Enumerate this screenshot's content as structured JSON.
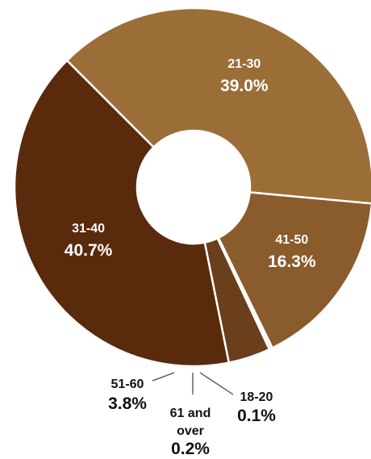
{
  "chart_data": {
    "type": "pie",
    "variant": "donut",
    "categories": [
      "21-30",
      "41-50",
      "18-20",
      "61 and over",
      "51-60",
      "31-40"
    ],
    "values": [
      39.0,
      16.3,
      0.1,
      0.2,
      3.8,
      40.7
    ],
    "value_labels": [
      "39.0%",
      "16.3%",
      "0.1%",
      "0.2%",
      "3.8%",
      "40.7%"
    ],
    "colors": [
      "#9B6E38",
      "#8A5B2C",
      "#6B3E1C",
      "#6B3E1C",
      "#6B3E1C",
      "#5A2A0C"
    ],
    "label_placement": [
      "inside",
      "inside",
      "outside",
      "outside",
      "outside",
      "inside"
    ],
    "title": "",
    "legend": "none",
    "slice_border_color": "#ffffff",
    "inside_label_color": "#ffffff",
    "outside_label_color": "#111111"
  }
}
